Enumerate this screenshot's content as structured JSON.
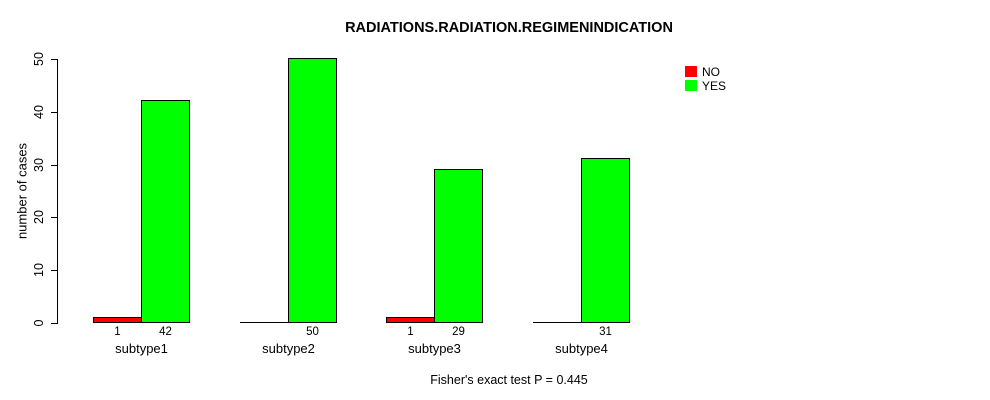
{
  "chart_data": {
    "type": "bar",
    "title": "RADIATIONS.RADIATION.REGIMENINDICATION",
    "ylabel": "number of cases",
    "xlabel": "",
    "ylim": [
      0,
      50
    ],
    "yticks": [
      0,
      10,
      20,
      30,
      40,
      50
    ],
    "categories": [
      "subtype1",
      "subtype2",
      "subtype3",
      "subtype4"
    ],
    "series": [
      {
        "name": "NO",
        "color": "#ff0000",
        "values": [
          1,
          0,
          1,
          0
        ]
      },
      {
        "name": "YES",
        "color": "#00ff00",
        "values": [
          42,
          50,
          29,
          31
        ]
      }
    ],
    "bar_value_labels": {
      "NO": [
        "1",
        "",
        "1",
        ""
      ],
      "YES": [
        "42",
        "50",
        "29",
        "31"
      ]
    },
    "legend": {
      "position": "right",
      "entries": [
        {
          "label": "NO",
          "color": "#ff0000"
        },
        {
          "label": "YES",
          "color": "#00ff00"
        }
      ]
    },
    "annotation": "Fisher's exact test P = 0.445",
    "grid": false,
    "axis_color": "#000000",
    "background_color": "#ffffff"
  }
}
